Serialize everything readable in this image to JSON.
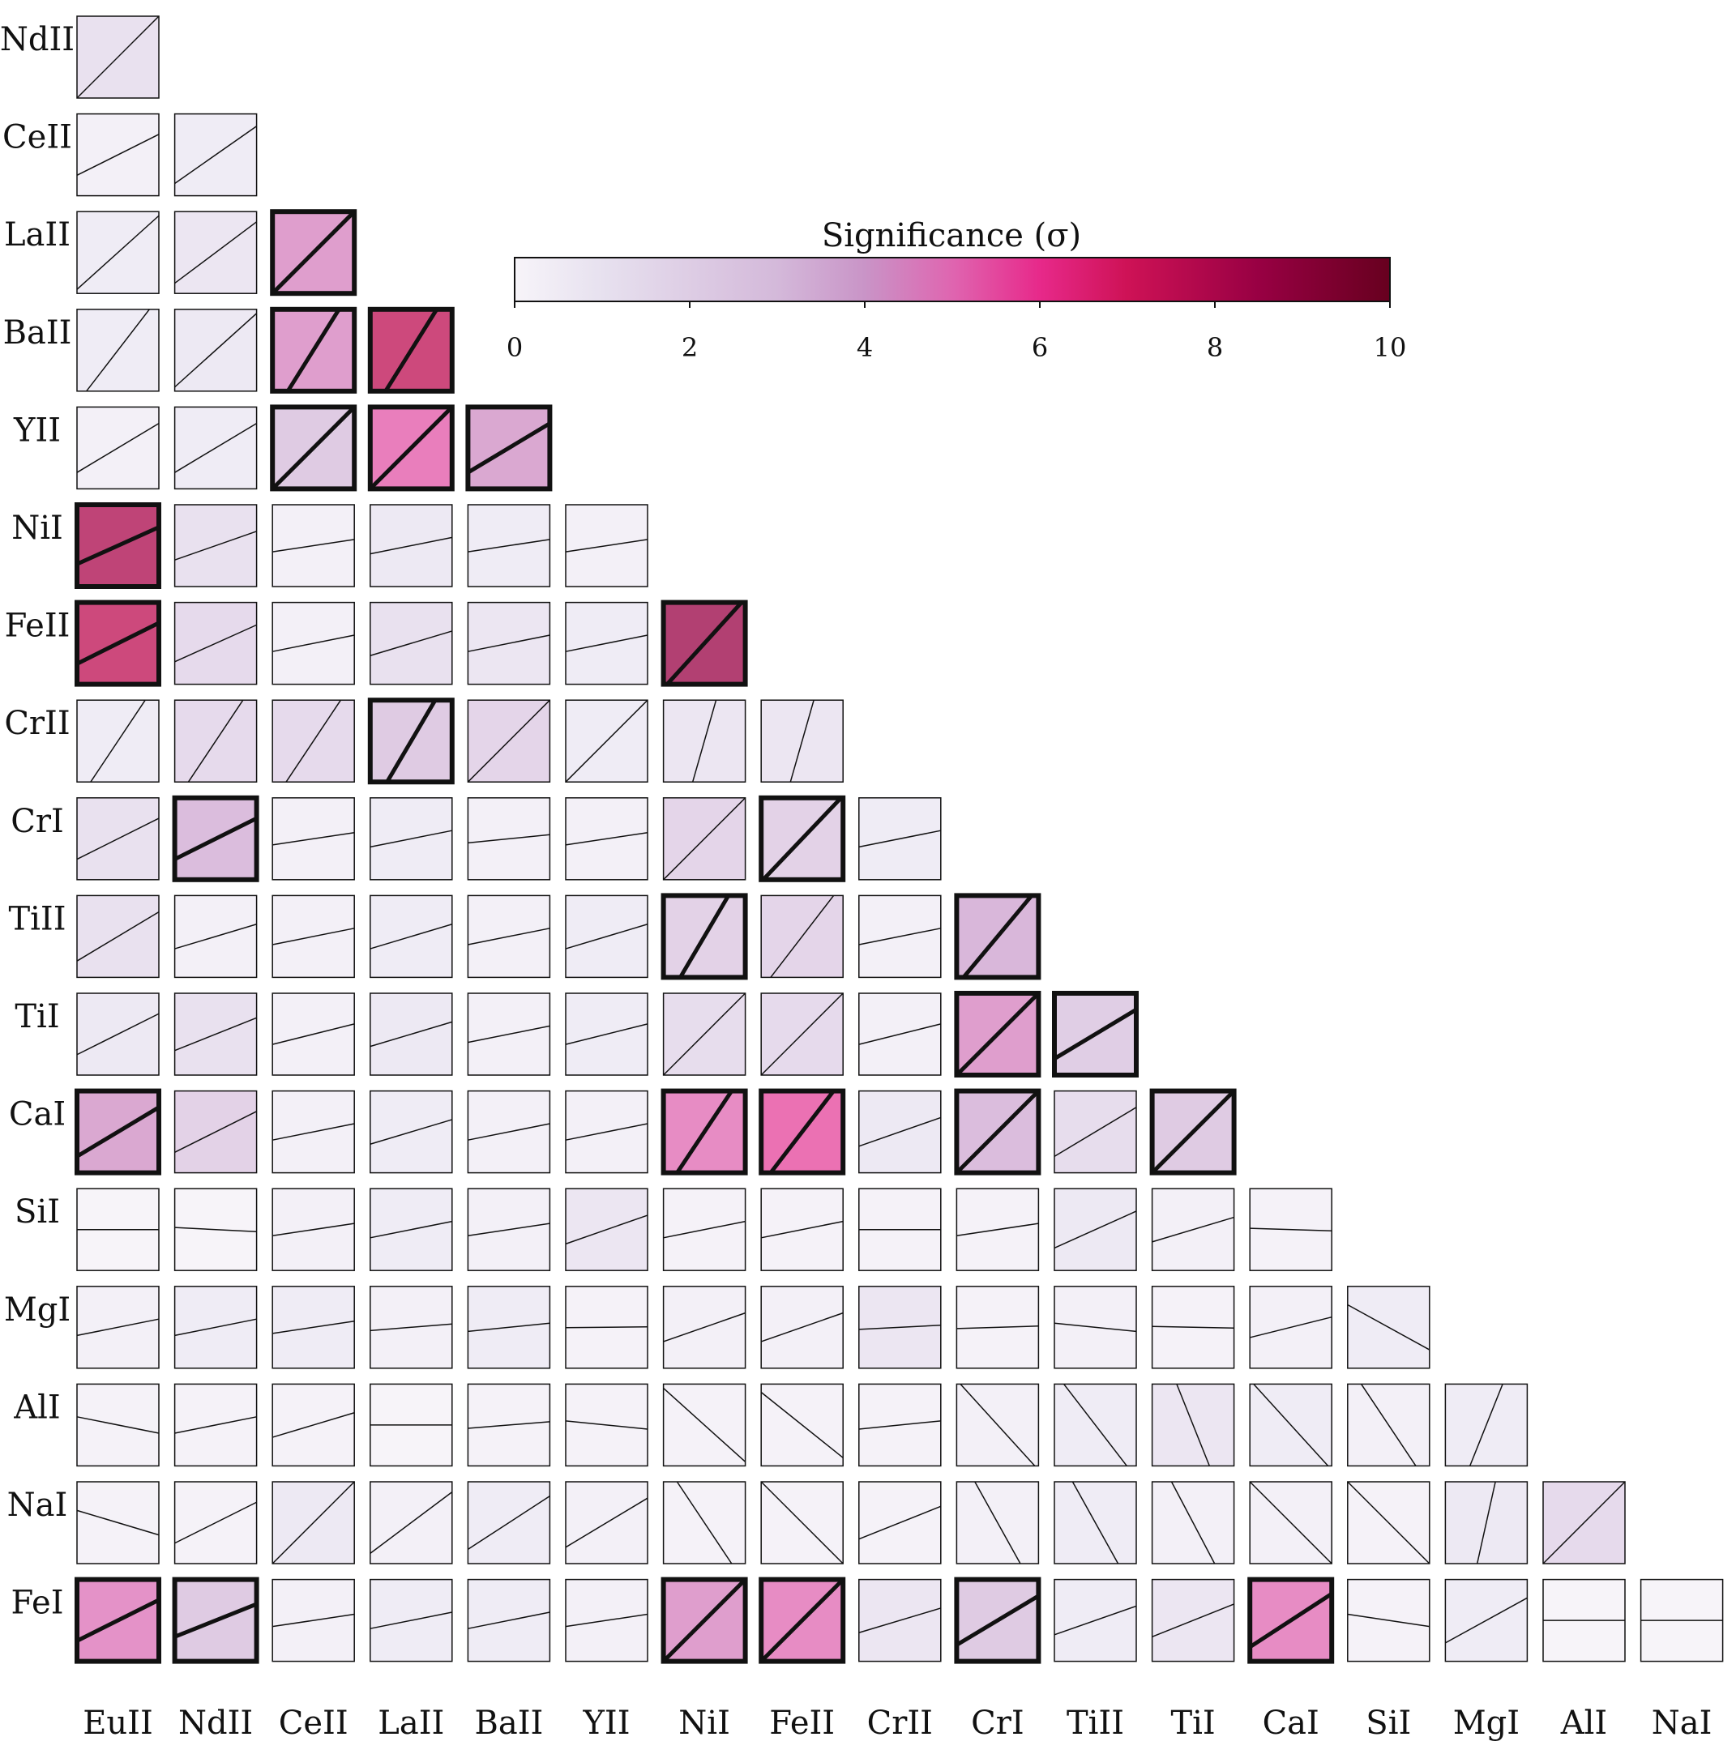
{
  "chart_data": {
    "type": "heatmap",
    "colorbar": {
      "title": "Significance (σ)",
      "min": 0,
      "max": 10,
      "ticks": [
        "0",
        "2",
        "4",
        "6",
        "8",
        "10"
      ]
    },
    "x_labels": [
      "EuII",
      "NdII",
      "CeII",
      "LaII",
      "BaII",
      "YII",
      "NiI",
      "FeII",
      "CrII",
      "CrI",
      "TiII",
      "TiI",
      "CaI",
      "SiI",
      "MgI",
      "AlI",
      "NaI"
    ],
    "y_labels": [
      "NdII",
      "CeII",
      "LaII",
      "BaII",
      "YII",
      "NiI",
      "FeII",
      "CrII",
      "CrI",
      "TiII",
      "TiI",
      "CaI",
      "SiI",
      "MgI",
      "AlI",
      "NaI",
      "FeI"
    ],
    "cells": [
      [
        {
          "s": 1.5,
          "m": 1.0,
          "b": 0
        }
      ],
      [
        {
          "s": 0.5,
          "m": 0.5,
          "b": 0
        },
        {
          "s": 0.8,
          "m": 0.7,
          "b": 0
        }
      ],
      [
        {
          "s": 0.8,
          "m": 0.9,
          "b": 0
        },
        {
          "s": 1.2,
          "m": 0.75,
          "b": 0
        },
        {
          "s": 4.5,
          "m": 1.0,
          "b": 1
        }
      ],
      [
        {
          "s": 0.8,
          "m": 1.3,
          "b": 0
        },
        {
          "s": 1.0,
          "m": 0.9,
          "b": 0
        },
        {
          "s": 4.5,
          "m": 1.6,
          "b": 1
        },
        {
          "s": 7.5,
          "m": 1.6,
          "b": 1
        }
      ],
      [
        {
          "s": 0.5,
          "m": 0.6,
          "b": 0
        },
        {
          "s": 0.8,
          "m": 0.6,
          "b": 0
        },
        {
          "s": 3.0,
          "m": 1.0,
          "b": 1
        },
        {
          "s": 5.3,
          "m": 1.0,
          "b": 1
        },
        {
          "s": 4.2,
          "m": 0.6,
          "b": 1
        }
      ],
      [
        {
          "s": 8.0,
          "m": 0.45,
          "b": 1
        },
        {
          "s": 1.5,
          "m": 0.35,
          "b": 0
        },
        {
          "s": 0.5,
          "m": 0.15,
          "b": 0
        },
        {
          "s": 1.0,
          "m": 0.2,
          "b": 0
        },
        {
          "s": 0.8,
          "m": 0.15,
          "b": 0
        },
        {
          "s": 0.5,
          "m": 0.15,
          "b": 0
        }
      ],
      [
        {
          "s": 7.5,
          "m": 0.5,
          "b": 1
        },
        {
          "s": 2.0,
          "m": 0.45,
          "b": 0
        },
        {
          "s": 0.5,
          "m": 0.2,
          "b": 0
        },
        {
          "s": 1.5,
          "m": 0.3,
          "b": 0
        },
        {
          "s": 1.2,
          "m": 0.2,
          "b": 0
        },
        {
          "s": 0.8,
          "m": 0.2,
          "b": 0
        },
        {
          "s": 8.5,
          "m": 1.1,
          "b": 1
        }
      ],
      [
        {
          "s": 0.8,
          "m": 1.5,
          "b": 0
        },
        {
          "s": 2.0,
          "m": 1.5,
          "b": 0
        },
        {
          "s": 2.0,
          "m": 1.5,
          "b": 0
        },
        {
          "s": 3.0,
          "m": 1.7,
          "b": 1
        },
        {
          "s": 2.3,
          "m": 1.0,
          "b": 0
        },
        {
          "s": 0.8,
          "m": 1.0,
          "b": 0
        },
        {
          "s": 1.2,
          "m": 3.5,
          "b": 0
        },
        {
          "s": 1.2,
          "m": 3.5,
          "b": 0
        }
      ],
      [
        {
          "s": 1.5,
          "m": 0.5,
          "b": 0
        },
        {
          "s": 3.5,
          "m": 0.5,
          "b": 1
        },
        {
          "s": 0.5,
          "m": 0.15,
          "b": 0
        },
        {
          "s": 0.8,
          "m": 0.2,
          "b": 0
        },
        {
          "s": 0.5,
          "m": 0.1,
          "b": 0
        },
        {
          "s": 0.5,
          "m": 0.15,
          "b": 0
        },
        {
          "s": 2.3,
          "m": 1.0,
          "b": 0
        },
        {
          "s": 2.5,
          "m": 1.05,
          "b": 1
        },
        {
          "s": 0.8,
          "m": 0.2,
          "b": 0
        }
      ],
      [
        {
          "s": 1.5,
          "m": 0.6,
          "b": 0
        },
        {
          "s": 0.5,
          "m": 0.3,
          "b": 0
        },
        {
          "s": 0.5,
          "m": 0.2,
          "b": 0
        },
        {
          "s": 0.8,
          "m": 0.3,
          "b": 0
        },
        {
          "s": 0.5,
          "m": 0.2,
          "b": 0
        },
        {
          "s": 0.8,
          "m": 0.3,
          "b": 0
        },
        {
          "s": 2.5,
          "m": 1.7,
          "b": 1
        },
        {
          "s": 2.3,
          "m": 1.3,
          "b": 0
        },
        {
          "s": 0.5,
          "m": 0.2,
          "b": 0
        },
        {
          "s": 3.7,
          "m": 1.2,
          "b": 1
        }
      ],
      [
        {
          "s": 1.0,
          "m": 0.5,
          "b": 0
        },
        {
          "s": 1.5,
          "m": 0.4,
          "b": 0
        },
        {
          "s": 0.5,
          "m": 0.25,
          "b": 0
        },
        {
          "s": 1.0,
          "m": 0.3,
          "b": 0
        },
        {
          "s": 0.5,
          "m": 0.2,
          "b": 0
        },
        {
          "s": 0.8,
          "m": 0.25,
          "b": 0
        },
        {
          "s": 1.8,
          "m": 1.0,
          "b": 0
        },
        {
          "s": 2.0,
          "m": 1.0,
          "b": 0
        },
        {
          "s": 0.5,
          "m": 0.25,
          "b": 0
        },
        {
          "s": 4.5,
          "m": 1.0,
          "b": 1
        },
        {
          "s": 2.8,
          "m": 0.6,
          "b": 1
        }
      ],
      [
        {
          "s": 4.2,
          "m": 0.6,
          "b": 1
        },
        {
          "s": 2.5,
          "m": 0.5,
          "b": 0
        },
        {
          "s": 0.5,
          "m": 0.2,
          "b": 0
        },
        {
          "s": 0.8,
          "m": 0.3,
          "b": 0
        },
        {
          "s": 0.5,
          "m": 0.2,
          "b": 0
        },
        {
          "s": 0.5,
          "m": 0.2,
          "b": 0
        },
        {
          "s": 5.0,
          "m": 1.5,
          "b": 1
        },
        {
          "s": 5.6,
          "m": 1.3,
          "b": 1
        },
        {
          "s": 1.0,
          "m": 0.35,
          "b": 0
        },
        {
          "s": 3.5,
          "m": 1.0,
          "b": 1
        },
        {
          "s": 1.8,
          "m": 0.6,
          "b": 0
        },
        {
          "s": 3.0,
          "m": 1.0,
          "b": 1
        }
      ],
      [
        {
          "s": 0.2,
          "m": 0.0,
          "b": 0
        },
        {
          "s": 0.2,
          "m": -0.05,
          "b": 0
        },
        {
          "s": 0.5,
          "m": 0.15,
          "b": 0
        },
        {
          "s": 0.8,
          "m": 0.2,
          "b": 0
        },
        {
          "s": 0.5,
          "m": 0.15,
          "b": 0
        },
        {
          "s": 1.2,
          "m": 0.35,
          "b": 0
        },
        {
          "s": 0.3,
          "m": 0.2,
          "b": 0
        },
        {
          "s": 0.3,
          "m": 0.2,
          "b": 0
        },
        {
          "s": 0.3,
          "m": 0.0,
          "b": 0
        },
        {
          "s": 0.3,
          "m": 0.15,
          "b": 0
        },
        {
          "s": 1.0,
          "m": 0.45,
          "b": 0
        },
        {
          "s": 0.5,
          "m": 0.3,
          "b": 0
        },
        {
          "s": 0.3,
          "m": -0.03,
          "b": 0
        }
      ],
      [
        {
          "s": 0.5,
          "m": 0.2,
          "b": 0
        },
        {
          "s": 0.8,
          "m": 0.2,
          "b": 0
        },
        {
          "s": 0.8,
          "m": 0.15,
          "b": 0
        },
        {
          "s": 0.5,
          "m": 0.08,
          "b": 0
        },
        {
          "s": 0.8,
          "m": 0.1,
          "b": 0
        },
        {
          "s": 0.3,
          "m": 0.01,
          "b": 0
        },
        {
          "s": 0.5,
          "m": 0.35,
          "b": 0
        },
        {
          "s": 0.5,
          "m": 0.35,
          "b": 0
        },
        {
          "s": 1.2,
          "m": 0.05,
          "b": 0
        },
        {
          "s": 0.3,
          "m": 0.03,
          "b": 0
        },
        {
          "s": 0.5,
          "m": -0.1,
          "b": 0
        },
        {
          "s": 0.3,
          "m": -0.02,
          "b": 0
        },
        {
          "s": 0.5,
          "m": 0.25,
          "b": 0
        },
        {
          "s": 0.8,
          "m": -0.55,
          "b": 0
        }
      ],
      [
        {
          "s": 0.3,
          "m": -0.2,
          "b": 0
        },
        {
          "s": 0.3,
          "m": 0.2,
          "b": 0
        },
        {
          "s": 0.3,
          "m": 0.3,
          "b": 0
        },
        {
          "s": 0.2,
          "m": 0.0,
          "b": 0
        },
        {
          "s": 0.3,
          "m": 0.08,
          "b": 0
        },
        {
          "s": 0.3,
          "m": -0.1,
          "b": 0
        },
        {
          "s": 0.3,
          "m": -0.9,
          "b": 0
        },
        {
          "s": 0.3,
          "m": -0.8,
          "b": 0
        },
        {
          "s": 0.3,
          "m": 0.1,
          "b": 0
        },
        {
          "s": 0.5,
          "m": -1.1,
          "b": 0
        },
        {
          "s": 0.8,
          "m": -1.3,
          "b": 0
        },
        {
          "s": 1.2,
          "m": -2.5,
          "b": 0
        },
        {
          "s": 0.8,
          "m": -1.1,
          "b": 0
        },
        {
          "s": 0.5,
          "m": -1.5,
          "b": 0
        },
        {
          "s": 0.8,
          "m": 2.5,
          "b": 0
        }
      ],
      [
        {
          "s": 0.3,
          "m": -0.3,
          "b": 0
        },
        {
          "s": 0.3,
          "m": 0.5,
          "b": 0
        },
        {
          "s": 1.0,
          "m": 1.0,
          "b": 0
        },
        {
          "s": 0.5,
          "m": 0.75,
          "b": 0
        },
        {
          "s": 0.8,
          "m": 0.65,
          "b": 0
        },
        {
          "s": 0.5,
          "m": 0.6,
          "b": 0
        },
        {
          "s": 0.3,
          "m": -1.5,
          "b": 0
        },
        {
          "s": 0.3,
          "m": -1.0,
          "b": 0
        },
        {
          "s": 0.3,
          "m": 0.4,
          "b": 0
        },
        {
          "s": 0.5,
          "m": -1.8,
          "b": 0
        },
        {
          "s": 0.8,
          "m": -1.8,
          "b": 0
        },
        {
          "s": 0.5,
          "m": -1.9,
          "b": 0
        },
        {
          "s": 0.5,
          "m": -1.0,
          "b": 0
        },
        {
          "s": 0.3,
          "m": -1.0,
          "b": 0
        },
        {
          "s": 1.0,
          "m": 4.5,
          "b": 0
        },
        {
          "s": 2.0,
          "m": 1.0,
          "b": 0
        }
      ],
      [
        {
          "s": 4.8,
          "m": 0.5,
          "b": 1
        },
        {
          "s": 3.0,
          "m": 0.4,
          "b": 1
        },
        {
          "s": 0.5,
          "m": 0.15,
          "b": 0
        },
        {
          "s": 0.8,
          "m": 0.2,
          "b": 0
        },
        {
          "s": 0.8,
          "m": 0.2,
          "b": 0
        },
        {
          "s": 0.5,
          "m": 0.15,
          "b": 0
        },
        {
          "s": 4.5,
          "m": 1.0,
          "b": 1
        },
        {
          "s": 5.0,
          "m": 1.0,
          "b": 1
        },
        {
          "s": 1.2,
          "m": 0.3,
          "b": 0
        },
        {
          "s": 3.0,
          "m": 0.6,
          "b": 1
        },
        {
          "s": 0.8,
          "m": 0.35,
          "b": 0
        },
        {
          "s": 1.2,
          "m": 0.4,
          "b": 0
        },
        {
          "s": 5.0,
          "m": 0.65,
          "b": 1
        },
        {
          "s": 0.3,
          "m": -0.15,
          "b": 0
        },
        {
          "s": 0.8,
          "m": 0.55,
          "b": 0
        },
        {
          "s": 0.2,
          "m": 0.0,
          "b": 0
        },
        {
          "s": 0.2,
          "m": 0.0,
          "b": 0
        }
      ]
    ]
  }
}
